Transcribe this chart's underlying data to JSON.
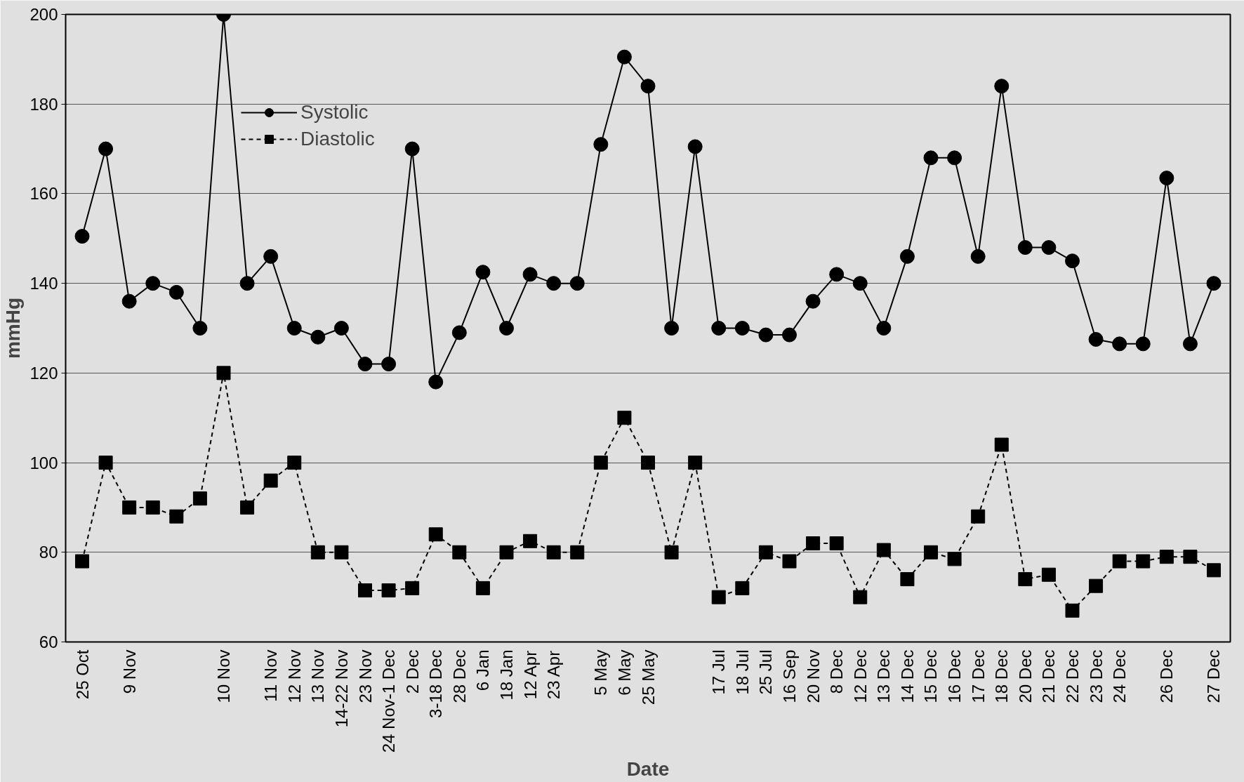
{
  "chart_data": {
    "type": "line",
    "xlabel": "Date",
    "ylabel": "mmHg",
    "ylim": [
      60,
      200
    ],
    "yticks": [
      60,
      80,
      100,
      120,
      140,
      160,
      180,
      200
    ],
    "categories": [
      "25 Oct",
      null,
      "9 Nov",
      null,
      null,
      null,
      "10 Nov",
      null,
      "11 Nov",
      "12 Nov",
      "13 Nov",
      "14-22 Nov",
      "23 Nov",
      "24 Nov-1 Dec",
      "2 Dec",
      "3-18 Dec",
      "28 Dec",
      "6 Jan",
      "18 Jan",
      "12 Apr",
      "23 Apr",
      null,
      "5 May",
      "6 May",
      "25 May",
      null,
      null,
      "17 Jul",
      "18 Jul",
      "25 Jul",
      "16 Sep",
      "20 Nov",
      "8 Dec",
      "12 Dec",
      "13 Dec",
      "14 Dec",
      "15 Dec",
      "16 Dec",
      "17 Dec",
      "18 Dec",
      "20 Dec",
      "21 Dec",
      "22 Dec",
      "23 Dec",
      "24 Dec",
      null,
      "26 Dec",
      null,
      "27 Dec"
    ],
    "grid": "y",
    "legend": "top left",
    "series": [
      {
        "name": "Systolic",
        "color": "#000000",
        "marker": "circle",
        "line_style": "solid",
        "values": [
          150.5,
          170,
          136,
          140,
          138,
          130,
          200,
          140,
          146,
          130,
          128,
          130,
          122,
          122,
          170,
          118,
          129,
          142.5,
          130,
          142,
          140,
          140,
          171,
          190.5,
          184,
          130,
          170.5,
          130,
          130,
          128.5,
          128.5,
          136,
          142,
          140,
          130,
          146,
          168,
          168,
          146,
          184,
          148,
          148,
          145,
          127.5,
          126.5,
          126.5,
          163.5,
          126.5,
          140
        ]
      },
      {
        "name": "Diastolic",
        "color": "#000000",
        "marker": "square",
        "line_style": "dashed",
        "values": [
          78,
          100,
          90,
          90,
          88,
          92,
          120,
          90,
          96,
          100,
          80,
          80,
          71.5,
          71.5,
          72,
          84,
          80,
          72,
          80,
          82.5,
          80,
          80,
          100,
          110,
          100,
          80,
          100,
          70,
          72,
          80,
          78,
          82,
          82,
          70,
          80.5,
          74,
          80,
          78.5,
          88,
          104,
          74,
          75,
          67,
          72.5,
          78,
          78,
          79,
          79,
          76
        ]
      }
    ]
  }
}
